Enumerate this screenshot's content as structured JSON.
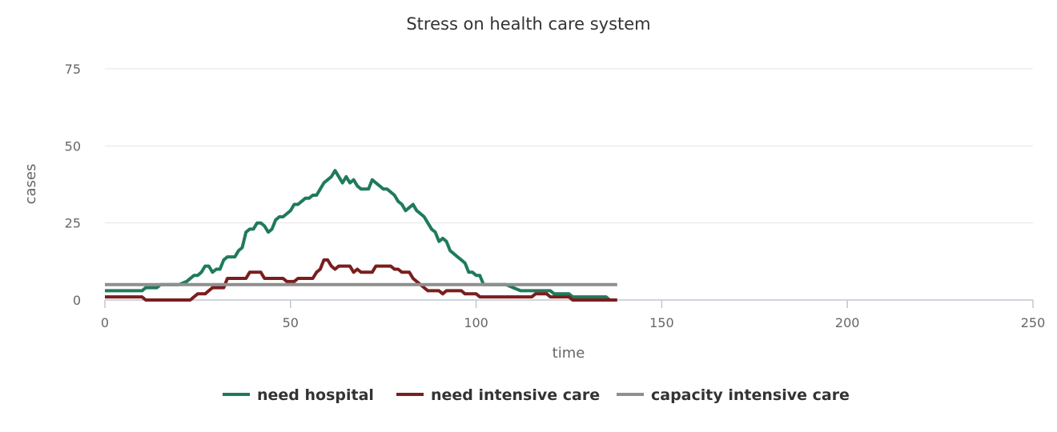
{
  "chart_data": {
    "type": "line",
    "title": "Stress on health care system",
    "xlabel": "time",
    "ylabel": "cases",
    "xlim": [
      0,
      250
    ],
    "ylim": [
      0,
      75
    ],
    "x_ticks": [
      "0",
      "50",
      "100",
      "150",
      "200",
      "250"
    ],
    "y_ticks": [
      "0",
      "25",
      "50",
      "75"
    ],
    "grid": "horizontal",
    "legend_position": "bottom",
    "series": [
      {
        "name": "need hospital",
        "color": "#1f7a5c",
        "points": [
          [
            0,
            3
          ],
          [
            5,
            3
          ],
          [
            10,
            3
          ],
          [
            11,
            4
          ],
          [
            14,
            4
          ],
          [
            15,
            5
          ],
          [
            20,
            5
          ],
          [
            22,
            6
          ],
          [
            24,
            8
          ],
          [
            25,
            8
          ],
          [
            26,
            9
          ],
          [
            27,
            11
          ],
          [
            28,
            11
          ],
          [
            29,
            9
          ],
          [
            30,
            10
          ],
          [
            31,
            10
          ],
          [
            32,
            13
          ],
          [
            33,
            14
          ],
          [
            35,
            14
          ],
          [
            36,
            16
          ],
          [
            37,
            17
          ],
          [
            38,
            22
          ],
          [
            39,
            23
          ],
          [
            40,
            23
          ],
          [
            41,
            25
          ],
          [
            42,
            25
          ],
          [
            43,
            24
          ],
          [
            44,
            22
          ],
          [
            45,
            23
          ],
          [
            46,
            26
          ],
          [
            47,
            27
          ],
          [
            48,
            27
          ],
          [
            50,
            29
          ],
          [
            51,
            31
          ],
          [
            52,
            31
          ],
          [
            53,
            32
          ],
          [
            54,
            33
          ],
          [
            55,
            33
          ],
          [
            56,
            34
          ],
          [
            57,
            34
          ],
          [
            58,
            36
          ],
          [
            59,
            38
          ],
          [
            60,
            39
          ],
          [
            61,
            40
          ],
          [
            62,
            42
          ],
          [
            63,
            40
          ],
          [
            64,
            38
          ],
          [
            65,
            40
          ],
          [
            66,
            38
          ],
          [
            67,
            39
          ],
          [
            68,
            37
          ],
          [
            69,
            36
          ],
          [
            71,
            36
          ],
          [
            72,
            39
          ],
          [
            73,
            38
          ],
          [
            74,
            37
          ],
          [
            75,
            36
          ],
          [
            76,
            36
          ],
          [
            77,
            35
          ],
          [
            78,
            34
          ],
          [
            79,
            32
          ],
          [
            80,
            31
          ],
          [
            81,
            29
          ],
          [
            82,
            30
          ],
          [
            83,
            31
          ],
          [
            84,
            29
          ],
          [
            85,
            28
          ],
          [
            86,
            27
          ],
          [
            87,
            25
          ],
          [
            88,
            23
          ],
          [
            89,
            22
          ],
          [
            90,
            19
          ],
          [
            91,
            20
          ],
          [
            92,
            19
          ],
          [
            93,
            16
          ],
          [
            94,
            15
          ],
          [
            95,
            14
          ],
          [
            96,
            13
          ],
          [
            97,
            12
          ],
          [
            98,
            9
          ],
          [
            99,
            9
          ],
          [
            100,
            8
          ],
          [
            101,
            8
          ],
          [
            102,
            5
          ],
          [
            105,
            5
          ],
          [
            108,
            5
          ],
          [
            110,
            4
          ],
          [
            112,
            3
          ],
          [
            115,
            3
          ],
          [
            120,
            3
          ],
          [
            121,
            2
          ],
          [
            125,
            2
          ],
          [
            126,
            1
          ],
          [
            130,
            1
          ],
          [
            135,
            1
          ],
          [
            136,
            0
          ]
        ]
      },
      {
        "name": "need intensive care",
        "color": "#7a1e1e",
        "points": [
          [
            0,
            1
          ],
          [
            10,
            1
          ],
          [
            11,
            0
          ],
          [
            15,
            0
          ],
          [
            20,
            0
          ],
          [
            23,
            0
          ],
          [
            24,
            1
          ],
          [
            25,
            2
          ],
          [
            27,
            2
          ],
          [
            28,
            3
          ],
          [
            29,
            4
          ],
          [
            32,
            4
          ],
          [
            33,
            7
          ],
          [
            38,
            7
          ],
          [
            39,
            9
          ],
          [
            42,
            9
          ],
          [
            43,
            7
          ],
          [
            48,
            7
          ],
          [
            49,
            6
          ],
          [
            51,
            6
          ],
          [
            52,
            7
          ],
          [
            56,
            7
          ],
          [
            57,
            9
          ],
          [
            58,
            10
          ],
          [
            59,
            13
          ],
          [
            60,
            13
          ],
          [
            61,
            11
          ],
          [
            62,
            10
          ],
          [
            63,
            11
          ],
          [
            66,
            11
          ],
          [
            67,
            9
          ],
          [
            68,
            10
          ],
          [
            69,
            9
          ],
          [
            72,
            9
          ],
          [
            73,
            11
          ],
          [
            77,
            11
          ],
          [
            78,
            10
          ],
          [
            79,
            10
          ],
          [
            80,
            9
          ],
          [
            82,
            9
          ],
          [
            83,
            7
          ],
          [
            84,
            6
          ],
          [
            85,
            5
          ],
          [
            86,
            4
          ],
          [
            87,
            3
          ],
          [
            90,
            3
          ],
          [
            91,
            2
          ],
          [
            92,
            3
          ],
          [
            96,
            3
          ],
          [
            97,
            2
          ],
          [
            100,
            2
          ],
          [
            101,
            1
          ],
          [
            105,
            1
          ],
          [
            110,
            1
          ],
          [
            115,
            1
          ],
          [
            116,
            2
          ],
          [
            119,
            2
          ],
          [
            120,
            1
          ],
          [
            125,
            1
          ],
          [
            126,
            0
          ],
          [
            138,
            0
          ]
        ]
      },
      {
        "name": "capacity intensive care",
        "color": "#8f8f8f",
        "points": [
          [
            0,
            5
          ],
          [
            138,
            5
          ]
        ]
      }
    ]
  }
}
